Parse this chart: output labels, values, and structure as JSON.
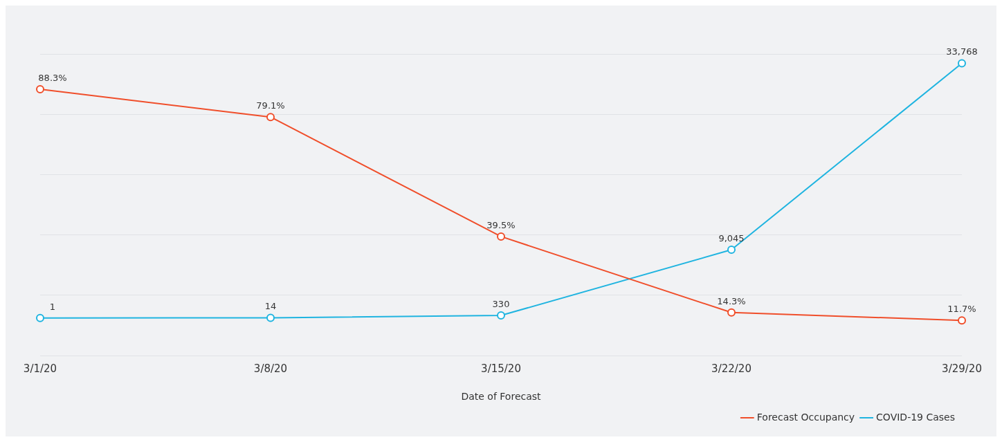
{
  "chart_data": {
    "type": "line",
    "xlabel": "Date of Forecast",
    "categories": [
      "3/1/20",
      "3/8/20",
      "3/15/20",
      "3/22/20",
      "3/29/20"
    ],
    "series": [
      {
        "name": "Forecast Occupancy",
        "color": "#f04e2a",
        "values": [
          88.3,
          79.1,
          39.5,
          14.3,
          11.7
        ],
        "value_labels": [
          "88.3%",
          "79.1%",
          "39.5%",
          "14.3%",
          "11.7%"
        ]
      },
      {
        "name": "COVID-19 Cases",
        "color": "#1fb4e0",
        "axis": "y2",
        "values": [
          1,
          14,
          330,
          9045,
          33768
        ],
        "value_labels": [
          "1",
          "14",
          "330",
          "9,045",
          "33,768"
        ]
      }
    ],
    "ylim": [
      0,
      100
    ],
    "yticks": [
      {
        "value": 0,
        "label": null
      },
      {
        "value": 20,
        "label": null
      },
      {
        "value": 40,
        "label": null
      },
      {
        "value": 60,
        "label": null
      },
      {
        "value": 80,
        "label": null
      },
      {
        "value": 100,
        "label": null
      }
    ],
    "y2lim": [
      -5000,
      35000
    ],
    "tick_labels": "x",
    "grid": "y",
    "legend": "bottom right",
    "marker": "circle",
    "line_style": "solid"
  }
}
